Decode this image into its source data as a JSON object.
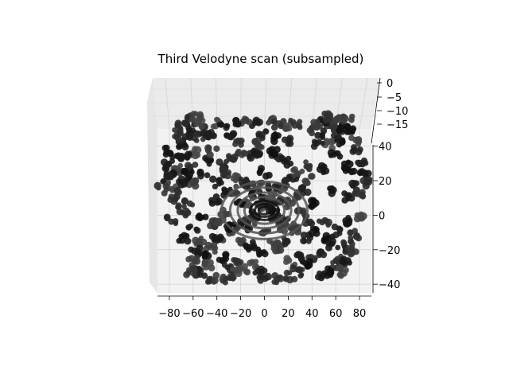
{
  "chart_data": {
    "type": "scatter",
    "projection": "3d",
    "title": "Third Velodyne scan (subsampled)",
    "xlabel": "",
    "ylabel": "",
    "zlabel": "",
    "xlim": [
      -90,
      90
    ],
    "ylim": [
      -45,
      50
    ],
    "zlim": [
      -20,
      2
    ],
    "grid": true,
    "x_ticks": [
      "−80",
      "−60",
      "−40",
      "−20",
      "0",
      "20",
      "40",
      "60",
      "80"
    ],
    "y_ticks": [
      "−40",
      "−20",
      "0",
      "20",
      "40"
    ],
    "z_ticks": [
      "0",
      "−5",
      "−10",
      "−15"
    ],
    "marker_color": "#1a1a1a",
    "pane_color": "#f2f2f2",
    "series": [
      {
        "points": [
          [
            0,
            0,
            -1.6
          ],
          [
            3,
            1,
            -1.6
          ],
          [
            -3,
            2,
            -1.6
          ],
          [
            4,
            -3,
            -1.6
          ],
          [
            -5,
            -2,
            -1.6
          ],
          [
            6,
            4,
            -1.7
          ],
          [
            -7,
            5,
            -1.7
          ],
          [
            8,
            -6,
            -1.7
          ],
          [
            -9,
            -7,
            -1.7
          ],
          [
            12,
            2,
            -1.8
          ],
          [
            -12,
            1,
            -1.8
          ],
          [
            14,
            9,
            -1.8
          ],
          [
            -15,
            10,
            -1.8
          ],
          [
            16,
            -10,
            -1.8
          ],
          [
            -17,
            -11,
            -1.8
          ],
          [
            20,
            0,
            -1.9
          ],
          [
            -20,
            0,
            -1.9
          ],
          [
            0,
            18,
            -1.9
          ],
          [
            0,
            -18,
            -1.9
          ],
          [
            24,
            14,
            -2.0
          ],
          [
            -24,
            15,
            -2.0
          ],
          [
            26,
            -14,
            -2.0
          ],
          [
            -26,
            -15,
            -2.0
          ],
          [
            30,
            5,
            -2.0
          ],
          [
            -30,
            6,
            -2.0
          ],
          [
            10,
            28,
            -2.0
          ],
          [
            -10,
            28,
            -2.0
          ],
          [
            11,
            -26,
            -2.0
          ],
          [
            -12,
            -27,
            -2.0
          ],
          [
            35,
            22,
            -2.1
          ],
          [
            -36,
            22,
            -2.1
          ],
          [
            36,
            -20,
            -2.1
          ],
          [
            -38,
            -21,
            -2.1
          ],
          [
            42,
            0,
            -2.1
          ],
          [
            -42,
            2,
            -2.1
          ],
          [
            20,
            36,
            -2.1
          ],
          [
            -22,
            36,
            -2.1
          ],
          [
            22,
            -34,
            -2.1
          ],
          [
            -22,
            -34,
            -2.1
          ],
          [
            -58,
            30,
            -2.0
          ],
          [
            -62,
            20,
            -1.5
          ],
          [
            -66,
            28,
            -1.0
          ],
          [
            -70,
            34,
            -0.6
          ],
          [
            -72,
            20,
            -2.0
          ],
          [
            -74,
            25,
            -1.2
          ],
          [
            -78,
            10,
            -2.0
          ],
          [
            -60,
            12,
            -1.8
          ],
          [
            -55,
            38,
            -0.5
          ],
          [
            -50,
            42,
            -1.5
          ],
          [
            -45,
            40,
            -2.0
          ],
          [
            -40,
            46,
            -1.0
          ],
          [
            -35,
            44,
            -2.0
          ],
          [
            -30,
            40,
            -1.4
          ],
          [
            -64,
            0,
            -2.0
          ],
          [
            -68,
            -5,
            -1.6
          ],
          [
            -75,
            5,
            -1.2
          ],
          [
            -80,
            18,
            -1.8
          ],
          [
            -48,
            24,
            -1.2
          ],
          [
            -52,
            16,
            -0.8
          ],
          [
            -44,
            30,
            -1.6
          ],
          [
            55,
            34,
            -2.0
          ],
          [
            60,
            28,
            -1.6
          ],
          [
            64,
            36,
            -1.2
          ],
          [
            68,
            22,
            -1.8
          ],
          [
            72,
            18,
            -1.2
          ],
          [
            75,
            10,
            -2.0
          ],
          [
            70,
            4,
            -1.8
          ],
          [
            58,
            8,
            -1.6
          ],
          [
            50,
            20,
            -1.4
          ],
          [
            45,
            35,
            -1.8
          ],
          [
            48,
            40,
            -1.2
          ],
          [
            40,
            42,
            -1.8
          ],
          [
            62,
            40,
            -0.8
          ],
          [
            66,
            44,
            -0.4
          ],
          [
            56,
            46,
            -1.5
          ],
          [
            -40,
            -20,
            -2.0
          ],
          [
            -45,
            -26,
            -1.8
          ],
          [
            -50,
            -30,
            -1.6
          ],
          [
            -54,
            -22,
            -2.0
          ],
          [
            -58,
            -28,
            -1.5
          ],
          [
            -48,
            -36,
            -1.8
          ],
          [
            -36,
            -32,
            -1.8
          ],
          [
            -30,
            -38,
            -1.8
          ],
          [
            -24,
            -40,
            -1.8
          ],
          [
            -18,
            -38,
            -1.8
          ],
          [
            -10,
            -36,
            -1.6
          ],
          [
            -4,
            -40,
            -1.8
          ],
          [
            -60,
            -14,
            -2.0
          ],
          [
            -52,
            -8,
            -1.6
          ],
          [
            -44,
            -12,
            -1.8
          ],
          [
            44,
            -16,
            -2.0
          ],
          [
            50,
            -12,
            -1.8
          ],
          [
            54,
            -20,
            -1.6
          ],
          [
            58,
            -24,
            -1.8
          ],
          [
            62,
            -16,
            -1.6
          ],
          [
            66,
            -26,
            -2.0
          ],
          [
            70,
            -22,
            -1.6
          ],
          [
            46,
            -28,
            -1.8
          ],
          [
            40,
            -32,
            -1.8
          ],
          [
            34,
            -36,
            -1.8
          ],
          [
            28,
            -40,
            -1.6
          ],
          [
            22,
            -42,
            -1.8
          ],
          [
            74,
            -28,
            -1.2
          ],
          [
            64,
            -32,
            -2.0
          ],
          [
            30,
            -30,
            -2.0
          ],
          [
            -8,
            46,
            -1.2
          ],
          [
            4,
            48,
            -1.6
          ],
          [
            12,
            46,
            -2.0
          ],
          [
            -16,
            48,
            -1.6
          ],
          [
            18,
            44,
            -1.2
          ],
          [
            -2,
            40,
            -2.0
          ],
          [
            8,
            38,
            -1.6
          ],
          [
            -6,
            34,
            -1.8
          ],
          [
            26,
            46,
            -1.4
          ],
          [
            -24,
            46,
            -1.4
          ],
          [
            -66,
            38,
            -0.3
          ],
          [
            -62,
            44,
            -0.6
          ],
          [
            -56,
            46,
            -0.9
          ],
          [
            -74,
            40,
            -1.4
          ],
          [
            -80,
            30,
            -1.8
          ],
          [
            -84,
            22,
            -2.0
          ],
          [
            -82,
            14,
            -1.8
          ],
          [
            -70,
            12,
            -1.4
          ],
          [
            -64,
            16,
            -1.2
          ],
          [
            -76,
            0,
            -1.6
          ],
          [
            78,
            30,
            -1.2
          ],
          [
            82,
            24,
            -1.8
          ],
          [
            84,
            16,
            -1.6
          ],
          [
            80,
            6,
            -2.0
          ],
          [
            76,
            36,
            -1.6
          ],
          [
            72,
            42,
            -1.0
          ],
          [
            70,
            48,
            -0.7
          ],
          [
            58,
            48,
            -1.2
          ],
          [
            50,
            48,
            -1.5
          ],
          [
            44,
            46,
            -0.9
          ],
          [
            -20,
            30,
            -2.0
          ],
          [
            -28,
            26,
            -2.0
          ],
          [
            -32,
            18,
            -2.0
          ],
          [
            -26,
            8,
            -2.0
          ],
          [
            -34,
            -6,
            -2.0
          ],
          [
            -28,
            -14,
            -2.0
          ],
          [
            -20,
            -22,
            -2.0
          ],
          [
            -12,
            -24,
            -2.0
          ],
          [
            -2,
            -28,
            -2.0
          ],
          [
            8,
            -24,
            -2.0
          ],
          [
            18,
            -22,
            -2.0
          ],
          [
            26,
            -16,
            -2.0
          ],
          [
            32,
            -6,
            -2.0
          ],
          [
            34,
            8,
            -2.0
          ],
          [
            28,
            18,
            -2.0
          ],
          [
            18,
            24,
            -2.0
          ],
          [
            8,
            30,
            -2.0
          ],
          [
            -8,
            30,
            -2.0
          ],
          [
            16,
            12,
            -1.9
          ],
          [
            -16,
            12,
            -1.9
          ],
          [
            16,
            -14,
            -1.9
          ],
          [
            -16,
            -14,
            -1.9
          ],
          [
            6,
            10,
            -1.7
          ],
          [
            -6,
            10,
            -1.7
          ],
          [
            8,
            -10,
            -1.7
          ],
          [
            -8,
            -10,
            -1.7
          ],
          [
            38,
            14,
            -2.0
          ],
          [
            -40,
            12,
            -2.0
          ],
          [
            38,
            -10,
            -2.0
          ],
          [
            -38,
            -10,
            -2.0
          ],
          [
            -54,
            -40,
            -1.0
          ],
          [
            -46,
            -44,
            -1.6
          ],
          [
            -38,
            -44,
            -1.4
          ],
          [
            -30,
            -44,
            -1.8
          ],
          [
            -60,
            -34,
            -1.2
          ],
          [
            60,
            -36,
            -1.6
          ],
          [
            54,
            -40,
            -1.2
          ],
          [
            48,
            -42,
            -1.8
          ],
          [
            70,
            -34,
            -1.0
          ],
          [
            76,
            -18,
            -1.6
          ],
          [
            -86,
            8,
            -1.4
          ],
          [
            86,
            12,
            -1.4
          ],
          [
            -68,
            -20,
            -1.6
          ],
          [
            68,
            -10,
            -1.4
          ],
          [
            0,
            -44,
            -1.6
          ],
          [
            -72,
            44,
            -0.4
          ],
          [
            -66,
            48,
            -0.2
          ],
          [
            64,
            48,
            -0.3
          ],
          [
            -58,
            50,
            -0.5
          ],
          [
            52,
            50,
            -0.6
          ],
          [
            -62,
            -40,
            -0.8
          ],
          [
            66,
            -40,
            -0.9
          ],
          [
            -78,
            -10,
            -1.4
          ],
          [
            80,
            -8,
            -1.6
          ],
          [
            10,
            -44,
            -1.4
          ]
        ]
      }
    ]
  }
}
